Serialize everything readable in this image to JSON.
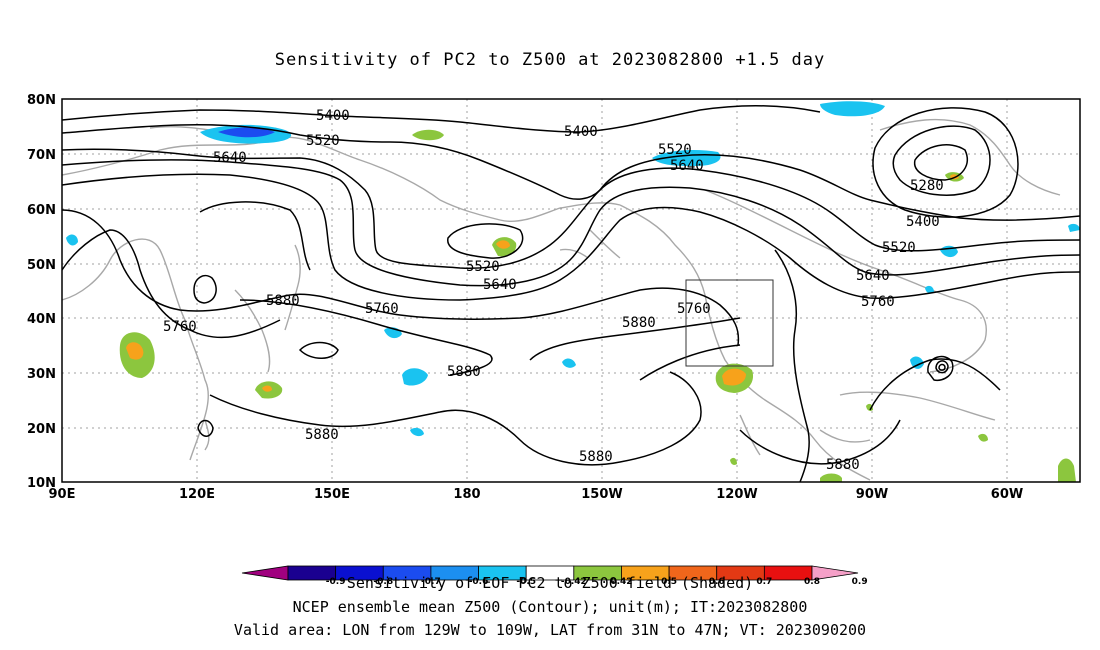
{
  "title": "Sensitivity of PC2 to Z500 at 2023082800 +1.5 day",
  "map": {
    "lat_labels": [
      "80N",
      "70N",
      "60N",
      "50N",
      "40N",
      "30N",
      "20N",
      "10N"
    ],
    "lon_labels": [
      "90E",
      "120E",
      "150E",
      "180",
      "150W",
      "120W",
      "90W",
      "60W"
    ],
    "contour_labels": [
      {
        "text": "5400"
      },
      {
        "text": "5400"
      },
      {
        "text": "5400"
      },
      {
        "text": "5520"
      },
      {
        "text": "5520"
      },
      {
        "text": "5520"
      },
      {
        "text": "5520"
      },
      {
        "text": "5640"
      },
      {
        "text": "5640"
      },
      {
        "text": "5640"
      },
      {
        "text": "5640"
      },
      {
        "text": "5760"
      },
      {
        "text": "5760"
      },
      {
        "text": "5760"
      },
      {
        "text": "5760"
      },
      {
        "text": "5880"
      },
      {
        "text": "5880"
      },
      {
        "text": "5880"
      },
      {
        "text": "5880"
      },
      {
        "text": "5880"
      },
      {
        "text": "5880"
      },
      {
        "text": "5280"
      }
    ],
    "valid_box": {
      "lon_from": "129W",
      "lon_to": "109W",
      "lat_from": "31N",
      "lat_to": "47N"
    }
  },
  "colorbar": {
    "tick_labels": [
      "-0.9",
      "-0.8",
      "-0.7",
      "-0.6",
      "-0.5",
      "-0.42",
      "0.42",
      "0.5",
      "0.6",
      "0.7",
      "0.8",
      "0.9"
    ],
    "colors": [
      "#a0007f",
      "#1a0090",
      "#0a10d0",
      "#1b4cf0",
      "#1c8ff0",
      "#1ac3f0",
      "#ffffff",
      "#8cc63e",
      "#f7a21b",
      "#f0661b",
      "#e33914",
      "#e81010",
      "#f5a0c8"
    ]
  },
  "captions": {
    "colorbar_title": "Sensitivity of EOF PC2 to Z500 field (Shaded)",
    "line1": "NCEP ensemble mean Z500 (Contour); unit(m); IT:2023082800",
    "line2": "Valid area: LON from 129W to 109W, LAT from 31N to 47N; VT: 2023090200"
  }
}
